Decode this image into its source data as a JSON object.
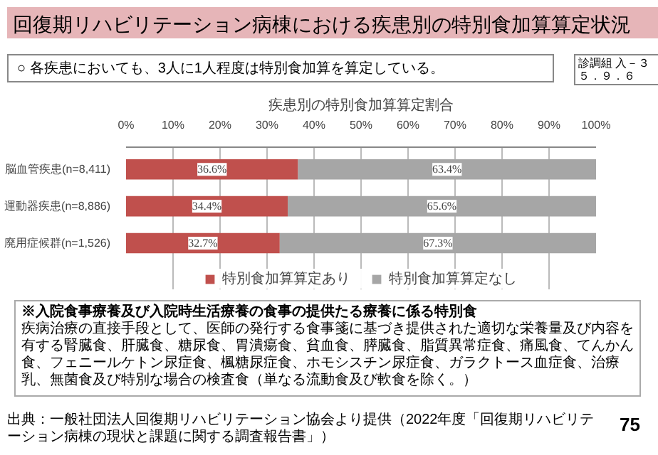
{
  "chart_data": {
    "type": "bar",
    "orientation": "horizontal",
    "stacked": true,
    "title": "回復期リハビリテーション病棟における疾患別の特別食加算算定状況",
    "subtitle": "○ 各疾患においても、3人に1人程度は特別食加算を算定している。",
    "categories": [
      "脳血管疾患(n=8,411)",
      "運動器疾患(n=8,886)",
      "廃用症候群(n=1,526)"
    ],
    "series": [
      {
        "name": "特別食加算算定あり",
        "color": "#c0504d",
        "values": [
          36.6,
          34.4,
          32.7
        ],
        "value_labels": [
          "36.6%",
          "34.4%",
          "32.7%"
        ]
      },
      {
        "name": "特別食加算算定なし",
        "color": "#a6a6a6",
        "values": [
          63.4,
          65.6,
          67.3
        ],
        "value_labels": [
          "63.4%",
          "65.6%",
          "67.3%"
        ]
      }
    ],
    "xlim": [
      0,
      100
    ],
    "xticks": [
      {
        "value": 0,
        "label": "0%"
      },
      {
        "value": 10,
        "label": "10%"
      },
      {
        "value": 20,
        "label": "20%"
      },
      {
        "value": 30,
        "label": "30%"
      },
      {
        "value": 40,
        "label": "40%"
      },
      {
        "value": 50,
        "label": "50%"
      },
      {
        "value": 60,
        "label": "60%"
      },
      {
        "value": 70,
        "label": "70%"
      },
      {
        "value": 80,
        "label": "80%"
      },
      {
        "value": 90,
        "label": "90%"
      },
      {
        "value": 100,
        "label": "100%"
      }
    ],
    "grid": "x",
    "legend": "bottom",
    "annotations": [
      "診調組 入－３",
      "５．９．６",
      "疾患別の特別食加算算定割合",
      "※入院食事療養及び入院時生活療養の食事の提供たる療養に係る特別食",
      "疾病治療の直接手段として、医師の発行する食事箋に基づき提供された適切な栄養量及び内容を有する腎臓食、肝臓食、糖尿食、胃潰瘍食、貧血食、膵臓食、脂質異常症食、痛風食、てんかん食、フェニールケトン尿症食、楓糖尿症食、ホモシスチン尿症食、ガラクトース血症食、治療乳、無菌食及び特別な場合の検査食（単なる流動食及び軟食を除く。）",
      "出典：一般社団法人回復期リハビリテーション協会より提供（2022年度「回復期リハビリテーション病棟の現状と課題に関する調査報告書」）",
      "75"
    ]
  }
}
